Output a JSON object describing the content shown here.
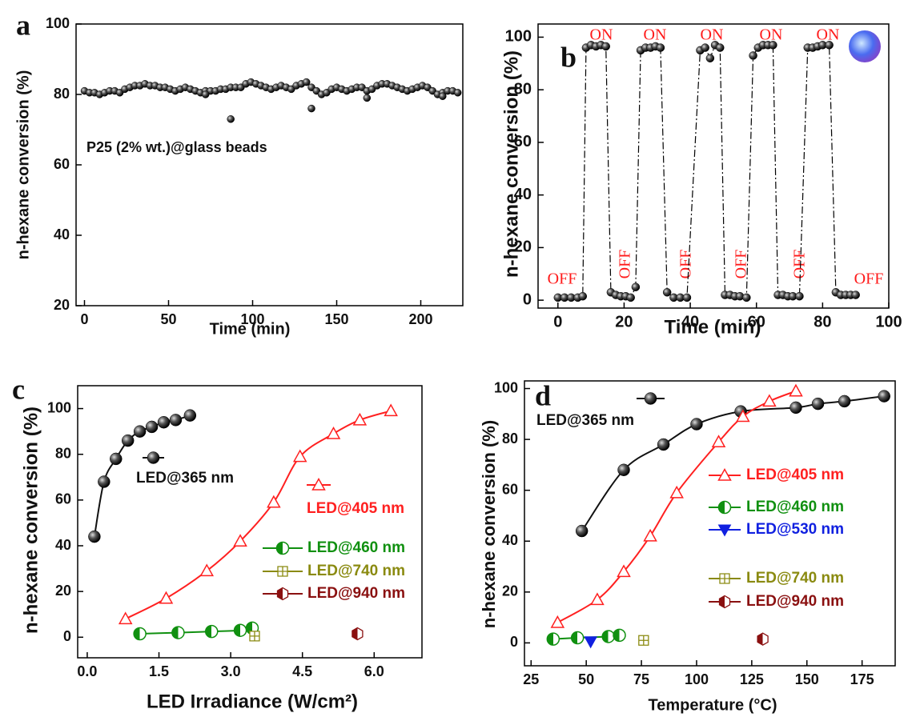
{
  "chart_data": [
    {
      "type": "scatter",
      "panel_label": "a",
      "xlabel": "Time (min)",
      "ylabel": "n-hexane conversion (%)",
      "annotation": "P25 (2% wt.)@glass beads",
      "xlim": [
        -5,
        225
      ],
      "ylim": [
        20,
        100
      ],
      "xticks": [
        0,
        50,
        100,
        150,
        200
      ],
      "yticks": [
        20,
        40,
        60,
        80,
        100
      ],
      "series": [
        {
          "color": "#222222",
          "marker": "sphere",
          "x": [
            0,
            3,
            6,
            9,
            12,
            15,
            18,
            21,
            24,
            27,
            30,
            33,
            36,
            39,
            42,
            45,
            48,
            51,
            54,
            57,
            60,
            63,
            66,
            69,
            72,
            75,
            78,
            81,
            84,
            87,
            90,
            93,
            96,
            99,
            102,
            105,
            108,
            111,
            114,
            117,
            120,
            123,
            126,
            129,
            132,
            135,
            138,
            141,
            144,
            147,
            150,
            153,
            156,
            159,
            162,
            165,
            168,
            171,
            174,
            177,
            180,
            183,
            186,
            189,
            192,
            195,
            198,
            201,
            204,
            207,
            210,
            213,
            216,
            219,
            222,
            87,
            135,
            168,
            72,
            213
          ],
          "values": [
            81,
            80.5,
            80.5,
            80,
            80.5,
            81,
            81,
            80.5,
            81.5,
            82,
            82.5,
            82.5,
            83,
            82.5,
            82.5,
            82,
            82,
            81.5,
            81,
            81.5,
            82,
            81.5,
            81,
            80.5,
            81,
            81,
            81,
            81.5,
            81.5,
            82,
            82,
            82,
            83,
            83.5,
            83,
            82.5,
            82,
            81.5,
            82,
            82.5,
            82,
            81.5,
            82.5,
            83,
            83.5,
            82,
            81,
            80,
            80.5,
            81.5,
            82,
            81.5,
            81,
            81.5,
            82,
            82,
            81,
            81.5,
            82.5,
            83,
            83,
            82.5,
            82,
            81.5,
            81,
            81.5,
            82,
            82.5,
            82,
            81,
            80,
            80.5,
            81,
            81,
            80.5,
            73,
            76,
            79,
            80,
            79.5
          ]
        }
      ]
    },
    {
      "type": "line",
      "panel_label": "b",
      "xlabel": "Time (min)",
      "ylabel": "n-hexane conversion (%)",
      "annotations": [
        "ON",
        "ON",
        "ON",
        "ON",
        "ON",
        "OFF",
        "OFF",
        "OFF",
        "OFF",
        "OFF",
        "OFF"
      ],
      "xlim": [
        -6,
        100
      ],
      "ylim": [
        -3,
        105
      ],
      "xticks": [
        0,
        20,
        40,
        60,
        80,
        100
      ],
      "yticks": [
        0,
        20,
        40,
        60,
        80,
        100
      ],
      "line_style": "dashdot",
      "series": [
        {
          "color": "#222222",
          "marker": "sphere",
          "x": [
            0,
            2,
            4,
            6,
            7.5,
            8.5,
            10,
            11.5,
            13,
            14.5,
            16,
            17.5,
            19,
            20.5,
            22,
            23.5,
            25,
            26.5,
            28,
            29.5,
            31,
            33,
            35,
            37,
            39,
            43,
            44.5,
            46,
            47.5,
            49,
            50.5,
            52,
            53.5,
            55,
            57,
            59,
            60.5,
            62,
            63.5,
            65,
            66.5,
            68,
            69.5,
            71,
            73,
            75.5,
            77,
            78.5,
            80,
            82,
            84,
            85.5,
            87,
            88.5,
            90
          ],
          "values": [
            1,
            1,
            1,
            1,
            1.5,
            96,
            97,
            96.5,
            97,
            96.5,
            3,
            2,
            1.5,
            1.5,
            1,
            5,
            95,
            96,
            96,
            96.5,
            96,
            3,
            1,
            1,
            1,
            95,
            96,
            92,
            97,
            96,
            2,
            2,
            1.5,
            1.5,
            1,
            93,
            96,
            97,
            97,
            97,
            2,
            2,
            1.5,
            1.5,
            1.5,
            96,
            96,
            96.5,
            97,
            97,
            3,
            2,
            2,
            2,
            2
          ]
        }
      ]
    },
    {
      "type": "line",
      "panel_label": "c",
      "xlabel": "LED Irradiance (W/cm²)",
      "ylabel": "n-hexane conversion (%)",
      "xlim": [
        -0.2,
        7.0
      ],
      "ylim": [
        -9,
        110
      ],
      "xticks": [
        {
          "value": 0,
          "label": "0.0"
        },
        1.5,
        {
          "value": 3,
          "label": "3.0"
        },
        4.5,
        {
          "value": 6,
          "label": "6.0"
        }
      ],
      "yticks": [
        0,
        20,
        40,
        60,
        80,
        100
      ],
      "series": [
        {
          "name": "LED@365 nm",
          "color": "#111111",
          "marker": "sphere",
          "x": [
            0.15,
            0.35,
            0.6,
            0.85,
            1.1,
            1.35,
            1.6,
            1.85,
            2.15
          ],
          "values": [
            44,
            68,
            78,
            86,
            90,
            92,
            94,
            95,
            97
          ]
        },
        {
          "name": "LED@405 nm",
          "color": "#ff2020",
          "marker": "triangle",
          "x": [
            0.8,
            1.65,
            2.5,
            3.2,
            3.9,
            4.45,
            5.15,
            5.7,
            6.35
          ],
          "values": [
            8,
            17,
            29,
            42,
            59,
            79,
            89,
            95,
            99
          ]
        },
        {
          "name": "LED@460 nm",
          "color": "#109010",
          "marker": "half-circle",
          "x": [
            1.1,
            1.9,
            2.6,
            3.2,
            3.45
          ],
          "values": [
            1.5,
            2,
            2.5,
            3,
            4
          ]
        },
        {
          "name": "LED@740 nm",
          "color": "#8a8a10",
          "marker": "square-cross",
          "x": [
            3.5
          ],
          "values": [
            0.5
          ]
        },
        {
          "name": "LED@940 nm",
          "color": "#8a1010",
          "marker": "half-hexagon",
          "x": [
            5.65
          ],
          "values": [
            1.5
          ]
        }
      ]
    },
    {
      "type": "line",
      "panel_label": "d",
      "xlabel": "Temperature (°C)",
      "ylabel": "n-hexane conversion (%)",
      "xlim": [
        22,
        190
      ],
      "ylim": [
        -9,
        103
      ],
      "xticks": [
        25,
        50,
        75,
        100,
        125,
        150,
        175
      ],
      "yticks": [
        0,
        20,
        40,
        60,
        80,
        100
      ],
      "series": [
        {
          "name": "LED@365 nm",
          "color": "#111111",
          "marker": "sphere",
          "x": [
            48,
            67,
            85,
            100,
            120,
            145,
            155,
            167,
            185
          ],
          "values": [
            44,
            68,
            78,
            86,
            91,
            92.5,
            94,
            95,
            97
          ]
        },
        {
          "name": "LED@405 nm",
          "color": "#ff2020",
          "marker": "triangle",
          "x": [
            37,
            55,
            67,
            79,
            91,
            110,
            121,
            133,
            145
          ],
          "values": [
            8,
            17,
            28,
            42,
            59,
            79,
            89,
            95,
            99
          ]
        },
        {
          "name": "LED@460 nm",
          "color": "#109010",
          "marker": "half-circle",
          "x": [
            35,
            46,
            60,
            65
          ],
          "values": [
            1.5,
            2,
            2.5,
            3
          ]
        },
        {
          "name": "LED@530 nm",
          "color": "#1020e0",
          "marker": "triangle-down",
          "x": [
            52
          ],
          "values": [
            0.5
          ]
        },
        {
          "name": "LED@740 nm",
          "color": "#8a8a10",
          "marker": "square-cross",
          "x": [
            76
          ],
          "values": [
            1
          ]
        },
        {
          "name": "LED@940 nm",
          "color": "#8a1010",
          "marker": "half-hexagon",
          "x": [
            130
          ],
          "values": [
            1.5
          ]
        }
      ]
    }
  ]
}
